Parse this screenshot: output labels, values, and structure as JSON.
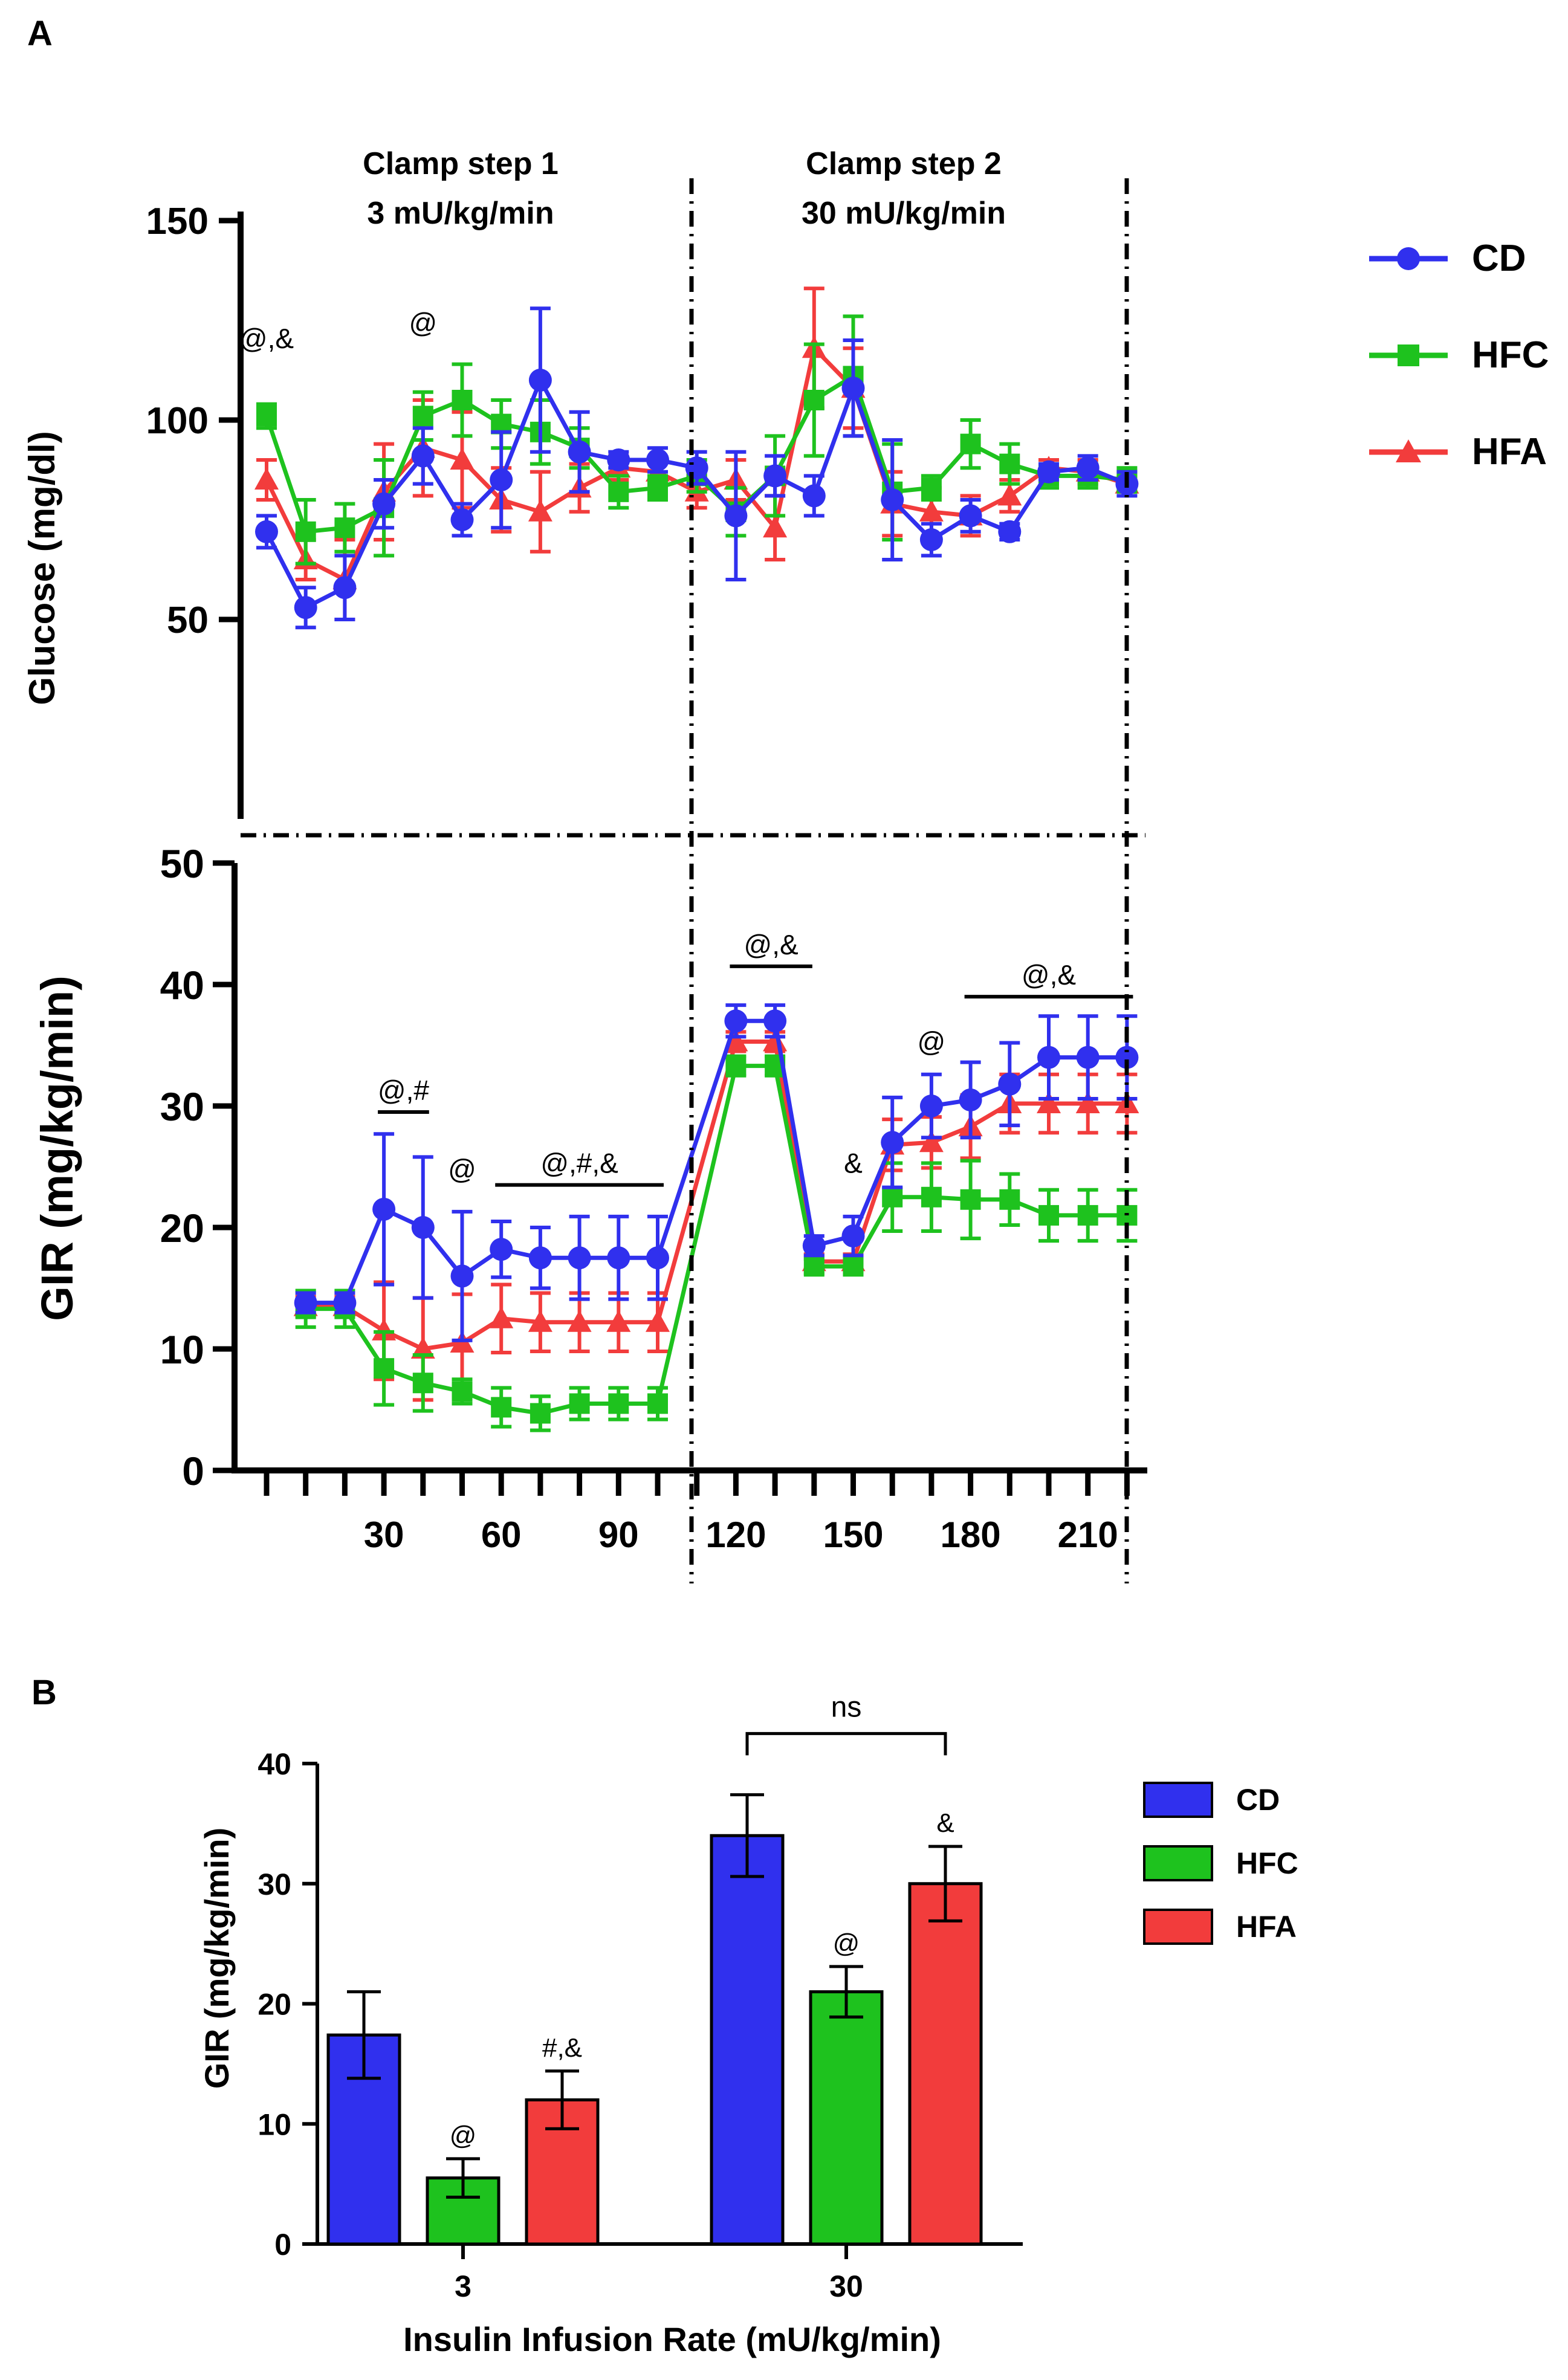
{
  "colors": {
    "CD": "#3030ee",
    "HFC": "#1ec21e",
    "HFA": "#f23c3c",
    "axis": "#000000"
  },
  "panel_a": {
    "label": "A",
    "step1": {
      "line1": "Clamp step 1",
      "line2": "3 mU/kg/min"
    },
    "step2": {
      "line1": "Clamp step 2",
      "line2": "30 mU/kg/min"
    },
    "legend": [
      "CD",
      "HFC",
      "HFA"
    ]
  },
  "panel_b": {
    "label": "B",
    "legend": [
      "CD",
      "HFC",
      "HFA"
    ]
  },
  "chart_data": [
    {
      "id": "glucose",
      "type": "line",
      "title": "",
      "xlabel": "",
      "ylabel": "Glucose (mg/dl)",
      "xlim": [
        0,
        220
      ],
      "ylim": [
        0,
        150
      ],
      "yticks": [
        50,
        100,
        150
      ],
      "x": [
        0,
        10,
        20,
        30,
        40,
        50,
        60,
        70,
        80,
        90,
        100,
        110,
        120,
        130,
        140,
        150,
        160,
        170,
        180,
        190,
        200,
        210,
        220
      ],
      "series": [
        {
          "name": "CD",
          "marker": "circle",
          "values": [
            72,
            53,
            58,
            79,
            91,
            75,
            85,
            110,
            92,
            90,
            90,
            88,
            76,
            86,
            81,
            108,
            80,
            70,
            76,
            72,
            87,
            88,
            84
          ],
          "errors": [
            4,
            5,
            8,
            6,
            7,
            4,
            12,
            18,
            10,
            2,
            3,
            4,
            16,
            5,
            5,
            12,
            15,
            4,
            4,
            2,
            2,
            3,
            3
          ]
        },
        {
          "name": "HFC",
          "marker": "square",
          "values": [
            101,
            72,
            73,
            78,
            101,
            105,
            99,
            97,
            93,
            82,
            83,
            86,
            77,
            86,
            105,
            111,
            82,
            83,
            94,
            89,
            86,
            86,
            85
          ],
          "errors": [
            3,
            8,
            6,
            12,
            6,
            9,
            6,
            8,
            5,
            4,
            3,
            4,
            6,
            10,
            14,
            15,
            12,
            3,
            6,
            5,
            3,
            3,
            3
          ]
        },
        {
          "name": "HFA",
          "marker": "triangle",
          "values": [
            85,
            65,
            60,
            82,
            93,
            90,
            80,
            77,
            83,
            88,
            87,
            82,
            85,
            73,
            118,
            108,
            79,
            77,
            76,
            81,
            88,
            87,
            84
          ],
          "errors": [
            5,
            5,
            10,
            12,
            12,
            12,
            8,
            10,
            6,
            3,
            3,
            4,
            5,
            8,
            15,
            10,
            8,
            6,
            5,
            4,
            2,
            3,
            2
          ]
        }
      ],
      "annotations": [
        {
          "x": 0,
          "y": 118,
          "text": "@,&"
        },
        {
          "x": 40,
          "y": 122,
          "text": "@"
        }
      ]
    },
    {
      "id": "gir_time",
      "type": "line",
      "title": "",
      "xlabel": "",
      "ylabel": "GIR (mg/kg/min)",
      "xlim": [
        -5,
        230
      ],
      "ylim": [
        0,
        50
      ],
      "yticks": [
        0,
        10,
        20,
        30,
        40,
        50
      ],
      "xticklabels": [
        "30",
        "60",
        "90",
        "120",
        "150",
        "180",
        "210"
      ],
      "xtickvalues": [
        30,
        60,
        90,
        120,
        150,
        180,
        210
      ],
      "x": [
        10,
        20,
        30,
        40,
        50,
        60,
        70,
        80,
        90,
        100,
        120,
        130,
        140,
        150,
        160,
        170,
        180,
        190,
        200,
        210,
        220
      ],
      "series": [
        {
          "name": "CD",
          "marker": "circle",
          "values": [
            13.8,
            13.8,
            21.5,
            20,
            16,
            18.2,
            17.5,
            17.5,
            17.5,
            17.5,
            37,
            37,
            18.5,
            19.3,
            27,
            30,
            30.5,
            31.8,
            34,
            34,
            34
          ],
          "errors": [
            0.8,
            0.8,
            6.2,
            5.8,
            5.3,
            2.3,
            2.5,
            3.4,
            3.4,
            3.4,
            1.3,
            1.3,
            0.8,
            1.6,
            3.7,
            2.6,
            3.1,
            3.4,
            3.4,
            3.4,
            3.4
          ]
        },
        {
          "name": "HFC",
          "marker": "square",
          "values": [
            13.3,
            13.3,
            8.4,
            7.2,
            6.5,
            5.2,
            4.7,
            5.5,
            5.5,
            5.5,
            33.3,
            33.3,
            16.8,
            16.8,
            22.5,
            22.5,
            22.3,
            22.3,
            21,
            21,
            21
          ],
          "errors": [
            1.5,
            1.5,
            3,
            2.3,
            1,
            1.6,
            1.4,
            1.3,
            1.3,
            1.3,
            0.8,
            0.8,
            0.6,
            0.6,
            2.8,
            2.8,
            3.2,
            2.1,
            2.1,
            2.1,
            2.1
          ]
        },
        {
          "name": "HFA",
          "marker": "triangle",
          "values": [
            13.5,
            13.5,
            11.5,
            10,
            10.5,
            12.5,
            12.2,
            12.2,
            12.2,
            12.2,
            35.3,
            35.3,
            17.2,
            17.2,
            26.8,
            27,
            28.3,
            30.2,
            30.2,
            30.2,
            30.2
          ],
          "errors": [
            0.8,
            0.8,
            4,
            4.2,
            4,
            2.8,
            2.4,
            2.4,
            2.4,
            2.4,
            0.8,
            0.8,
            0.6,
            0.6,
            2.1,
            2.1,
            2.6,
            2.4,
            2.4,
            2.4,
            2.4
          ]
        }
      ],
      "annotations": [
        {
          "x1": 30,
          "x2": 40,
          "y": 29.5,
          "text": "@,#"
        },
        {
          "x": 50,
          "y": 24,
          "text": "@"
        },
        {
          "x1": 60,
          "x2": 100,
          "y": 23.5,
          "text": "@,#,&"
        },
        {
          "x1": 120,
          "x2": 138,
          "y": 41.5,
          "text": "@,&"
        },
        {
          "x": 150,
          "y": 24.5,
          "text": "&"
        },
        {
          "x": 170,
          "y": 34.5,
          "text": "@"
        },
        {
          "x1": 180,
          "x2": 220,
          "y": 39,
          "text": "@,&"
        }
      ]
    },
    {
      "id": "gir_bar",
      "type": "bar",
      "title": "",
      "xlabel": "Insulin Infusion Rate (mU/kg/min)",
      "ylabel": "GIR (mg/kg/min)",
      "ylim": [
        0,
        40
      ],
      "yticks": [
        0,
        10,
        20,
        30,
        40
      ],
      "categories": [
        "3",
        "30"
      ],
      "series": [
        {
          "name": "CD",
          "values": [
            17.4,
            34
          ],
          "errors": [
            3.6,
            3.4
          ]
        },
        {
          "name": "HFC",
          "values": [
            5.5,
            21
          ],
          "errors": [
            1.6,
            2.1
          ]
        },
        {
          "name": "HFA",
          "values": [
            12,
            30
          ],
          "errors": [
            2.4,
            3.1
          ]
        }
      ],
      "annotations": [
        {
          "category": 0,
          "series": 1,
          "text": "@"
        },
        {
          "category": 0,
          "series": 2,
          "text": "#,&"
        },
        {
          "category": 1,
          "series": 1,
          "text": "@"
        },
        {
          "category": 1,
          "series": 2,
          "text": "&"
        }
      ],
      "bracket": {
        "from_category": 1,
        "from_series": 0,
        "to_series": 2,
        "y": 42.5,
        "text": "ns"
      }
    }
  ]
}
